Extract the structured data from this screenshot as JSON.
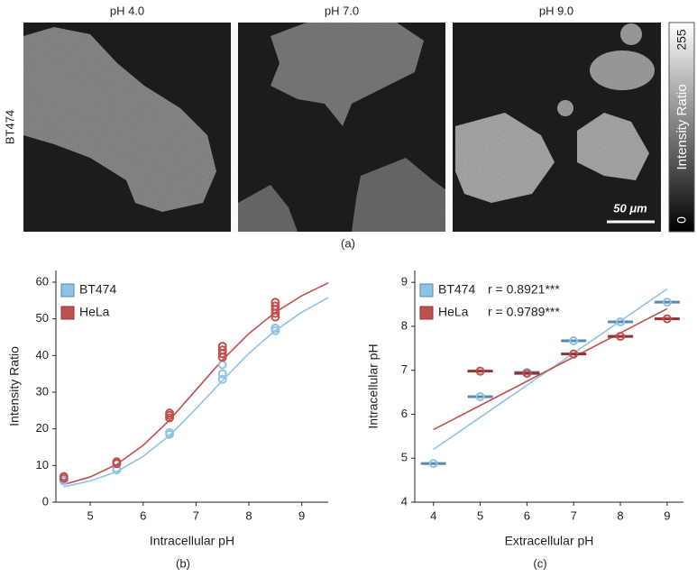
{
  "panel_a": {
    "columns": [
      "pH 4.0",
      "pH 7.0",
      "pH 9.0"
    ],
    "row_label": "BT474",
    "colorbar": {
      "label": "Intensity Ratio",
      "max": "255",
      "min": "0"
    },
    "scale_bar": "50 μm",
    "panel_label": "(a)"
  },
  "chart_data": [
    {
      "type": "scatter",
      "panel_label": "(b)",
      "x_label": "Intracellular pH",
      "y_label": "Intensity Ratio",
      "xlim": [
        4.35,
        9.5
      ],
      "ylim": [
        0,
        63.2
      ],
      "xticks": [
        5,
        6,
        7,
        8,
        9
      ],
      "yticks": [
        0,
        10,
        20,
        30,
        40,
        50,
        60
      ],
      "legend": "upper left",
      "series": [
        {
          "name": "BT474",
          "color": "#8ec3e6",
          "edge_color": "#5b87ab",
          "x": [
            4.5,
            4.5,
            5.5,
            5.5,
            6.5,
            6.5,
            7.5,
            7.5,
            7.5,
            8.5,
            8.5
          ],
          "values": [
            5.8,
            6.0,
            8.8,
            9.2,
            18.5,
            19.0,
            33.5,
            35.0,
            37.5,
            46.8,
            47.5
          ],
          "fit": {
            "x": [
              4.5,
              5,
              5.5,
              6,
              6.5,
              7,
              7.5,
              8,
              8.5,
              9,
              9.5
            ],
            "values": [
              4.2,
              5.8,
              8.3,
              12.5,
              18.2,
              25.5,
              33.2,
              40.6,
              46.8,
              51.8,
              55.8
            ]
          }
        },
        {
          "name": "HeLa",
          "color": "#c0504d",
          "edge_color": "#8f3432",
          "x": [
            4.5,
            4.5,
            5.5,
            5.5,
            6.5,
            6.5,
            6.5,
            7.5,
            7.5,
            7.5,
            7.5,
            8.5,
            8.5,
            8.5,
            8.5,
            8.5
          ],
          "values": [
            6.5,
            7.0,
            10.5,
            11.0,
            23.0,
            23.7,
            24.3,
            39.5,
            40.5,
            41.5,
            42.5,
            50.5,
            51.5,
            52.5,
            53.5,
            54.5
          ],
          "fit": {
            "x": [
              4.5,
              5,
              5.5,
              6,
              6.5,
              7,
              7.5,
              8,
              8.5,
              9,
              9.5
            ],
            "values": [
              4.8,
              6.9,
              10.3,
              15.5,
              22.4,
              30.6,
              38.8,
              46.0,
              51.8,
              56.3,
              59.8
            ]
          }
        }
      ]
    },
    {
      "type": "scatter",
      "panel_label": "(c)",
      "x_label": "Extracellular pH",
      "y_label": "Intracellular pH",
      "xlim": [
        3.6,
        9.35
      ],
      "ylim": [
        4,
        9.27
      ],
      "xticks": [
        4,
        5,
        6,
        7,
        8,
        9
      ],
      "yticks": [
        4,
        5,
        6,
        7,
        8,
        9
      ],
      "legend": "upper left",
      "series": [
        {
          "name": "BT474",
          "annotation": "r = 0.8921***",
          "color": "#8ec3e6",
          "edge_color": "#5b87ab",
          "x": [
            4,
            5,
            6,
            7,
            8,
            9
          ],
          "values": [
            4.88,
            6.4,
            6.95,
            7.67,
            8.1,
            8.55
          ],
          "fit": {
            "x": [
              4,
              9
            ],
            "values": [
              5.2,
              8.85
            ]
          }
        },
        {
          "name": "HeLa",
          "annotation": "r = 0.9789***",
          "color": "#c0504d",
          "edge_color": "#8f3432",
          "x": [
            5,
            6,
            7,
            8,
            9
          ],
          "values": [
            6.98,
            6.93,
            7.37,
            7.77,
            8.17
          ],
          "fit": {
            "x": [
              4,
              9
            ],
            "values": [
              5.65,
              8.4
            ]
          }
        }
      ]
    }
  ]
}
